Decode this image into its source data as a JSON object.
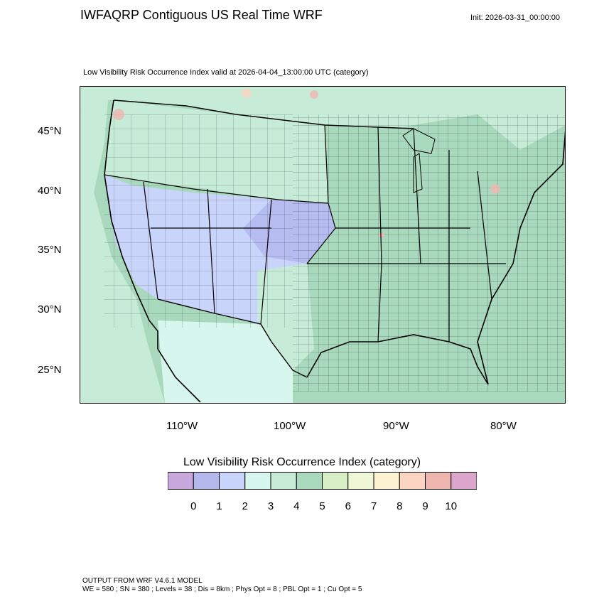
{
  "header": {
    "title": "IWFAQRP Contiguous US Real Time WRF",
    "init": "Init: 2026-03-31_00:00:00"
  },
  "map": {
    "subtitle": "Low Visibility Risk Occurrence Index valid at 2026-04-04_13:00:00 UTC   (category)",
    "lat_labels": [
      "45°N",
      "40°N",
      "35°N",
      "30°N",
      "25°N"
    ],
    "lon_labels": [
      "110°W",
      "100°W",
      "90°W",
      "80°W"
    ]
  },
  "colorbar": {
    "title": "Low Visibility Risk Occurrence Index  (category)",
    "ticks": [
      "0",
      "1",
      "2",
      "3",
      "4",
      "5",
      "6",
      "7",
      "8",
      "9",
      "10"
    ],
    "colors": [
      "#c8a8dc",
      "#b3b7ec",
      "#c8d4fa",
      "#d6f6ee",
      "#c6ecd8",
      "#a9d9bd",
      "#d8efc6",
      "#eef8d6",
      "#fdf3d2",
      "#fcd5c2",
      "#efb6b0",
      "#dca6cc"
    ]
  },
  "footer": {
    "line1": "OUTPUT FROM WRF V4.6.1 MODEL",
    "line2": "WE = 580 ; SN = 380 ; Levels = 38 ; Dis = 8km ; Phys Opt = 8 ; PBL Opt = 1 ; Cu Opt = 5"
  }
}
